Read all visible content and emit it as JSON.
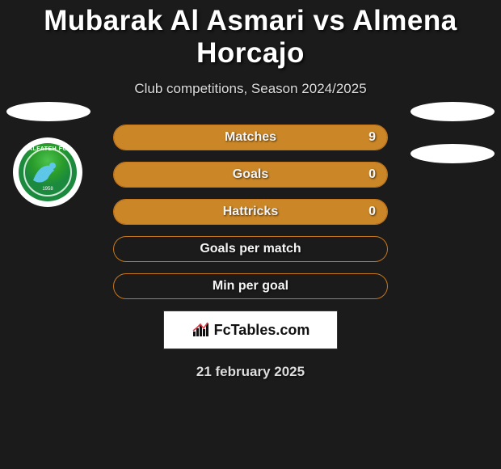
{
  "title": "Mubarak Al Asmari vs Almena Horcajo",
  "subtitle": "Club competitions, Season 2024/2025",
  "date": "21 february 2025",
  "promo": {
    "text": "FcTables.com"
  },
  "badge": {
    "top_text": "ALFATEH FC",
    "year": "1958"
  },
  "colors": {
    "background": "#1b1b1b",
    "bar_fill": "#cb8727",
    "bar_border": "#c6771d",
    "text": "#ffffff"
  },
  "stats": [
    {
      "label": "Matches",
      "value": "9",
      "fill_pct": 100
    },
    {
      "label": "Goals",
      "value": "0",
      "fill_pct": 100
    },
    {
      "label": "Hattricks",
      "value": "0",
      "fill_pct": 100
    },
    {
      "label": "Goals per match",
      "value": "",
      "fill_pct": 0
    },
    {
      "label": "Min per goal",
      "value": "",
      "fill_pct": 0
    }
  ]
}
